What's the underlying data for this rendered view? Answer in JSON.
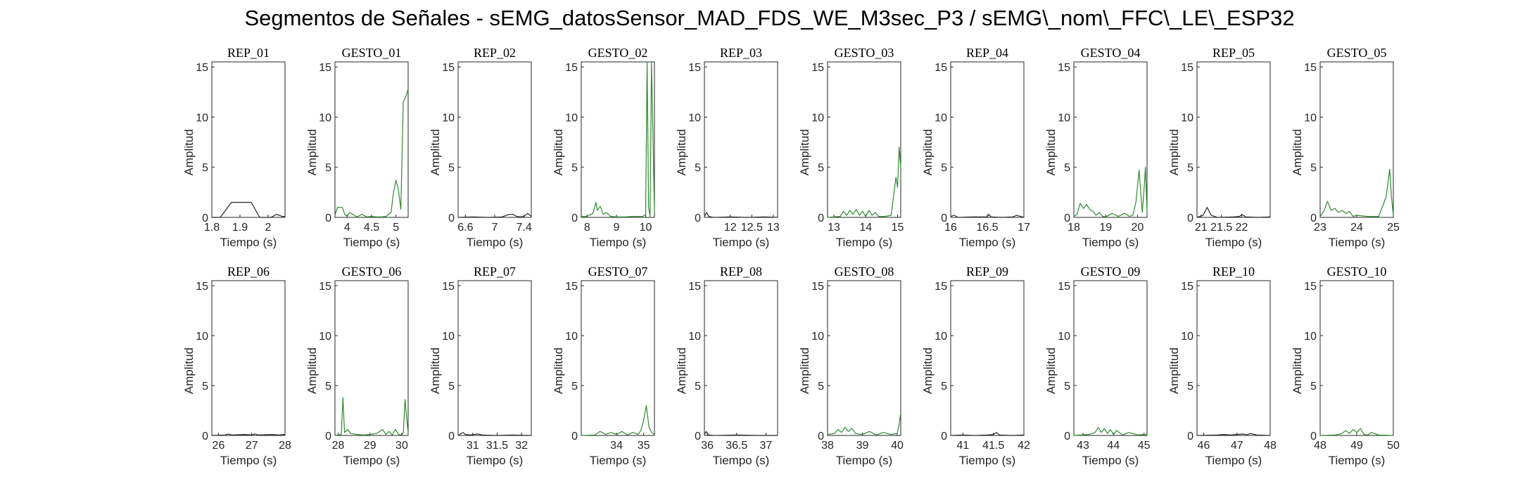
{
  "figure_title": "Segmentos de Señales - sEMG_datosSensor_MAD_FDS_WE_M3sec_P3 / sEMG\\_nom\\_FFC\\_LE\\_ESP32",
  "colors": {
    "rep": "#262626",
    "gesto": "#2e8b2e",
    "axis": "#262626"
  },
  "chart_data": [
    {
      "type": "line",
      "title": "REP_01",
      "xlabel": "Tiempo (s)",
      "ylabel": "Amplitud",
      "xlim": [
        1.8,
        2.06
      ],
      "ylim": [
        0,
        15.5
      ],
      "xticks": [
        1.8,
        1.9,
        2
      ],
      "xtick_labels": [
        "1.8",
        "1.9",
        "2"
      ],
      "yticks": [
        0,
        5,
        10,
        15
      ],
      "color": "rep",
      "x": [
        1.8,
        1.83,
        1.87,
        1.9,
        1.94,
        1.97,
        2.01,
        2.03,
        2.05,
        2.06
      ],
      "y": [
        0,
        0,
        1.5,
        1.5,
        1.5,
        0,
        0,
        0.3,
        0.1,
        0.1
      ]
    },
    {
      "type": "line",
      "title": "GESTO_01",
      "xlabel": "Tiempo (s)",
      "ylabel": "Amplitud",
      "xlim": [
        3.75,
        5.25
      ],
      "ylim": [
        0,
        15.5
      ],
      "xticks": [
        4,
        4.5,
        5
      ],
      "xtick_labels": [
        "4",
        "4.5",
        "5"
      ],
      "yticks": [
        0,
        5,
        10,
        15
      ],
      "color": "gesto",
      "x": [
        3.75,
        3.8,
        3.9,
        3.95,
        4.0,
        4.05,
        4.15,
        4.2,
        4.3,
        4.4,
        4.5,
        4.6,
        4.7,
        4.8,
        4.9,
        4.95,
        5.0,
        5.05,
        5.1,
        5.15,
        5.2,
        5.25
      ],
      "y": [
        0.2,
        1.0,
        1.0,
        0.3,
        0.1,
        0.5,
        0.2,
        0.05,
        0.3,
        0.05,
        0.1,
        0.05,
        0.05,
        0.1,
        0.5,
        2.5,
        3.7,
        2.8,
        0.8,
        11.5,
        12.0,
        12.8
      ]
    },
    {
      "type": "line",
      "title": "REP_02",
      "xlabel": "Tiempo (s)",
      "ylabel": "Amplitud",
      "xlim": [
        6.5,
        7.5
      ],
      "ylim": [
        0,
        15.5
      ],
      "xticks": [
        6.6,
        7,
        7.4
      ],
      "xtick_labels": [
        "6.6",
        "7",
        "7.4"
      ],
      "yticks": [
        0,
        5,
        10,
        15
      ],
      "color": "rep",
      "x": [
        6.5,
        6.7,
        6.9,
        7.1,
        7.2,
        7.25,
        7.3,
        7.35,
        7.4,
        7.45,
        7.5
      ],
      "y": [
        0,
        0.05,
        0,
        0.05,
        0.3,
        0.3,
        0.1,
        0.05,
        0.1,
        0.4,
        0.1
      ]
    },
    {
      "type": "line",
      "title": "GESTO_02",
      "xlabel": "Tiempo (s)",
      "ylabel": "Amplitud",
      "xlim": [
        7.8,
        10.3
      ],
      "ylim": [
        0,
        15.5
      ],
      "xticks": [
        8,
        9,
        10
      ],
      "xtick_labels": [
        "8",
        "9",
        "10"
      ],
      "yticks": [
        0,
        5,
        10,
        15
      ],
      "color": "gesto",
      "x": [
        7.8,
        8.0,
        8.2,
        8.3,
        8.35,
        8.45,
        8.55,
        8.65,
        8.8,
        9.0,
        9.3,
        9.6,
        9.9,
        10.0,
        10.05,
        10.1,
        10.15,
        10.2,
        10.3
      ],
      "y": [
        0.1,
        0.1,
        0.4,
        1.5,
        0.7,
        1.1,
        0.3,
        0.5,
        0.1,
        0.05,
        0.05,
        0.1,
        0.1,
        0.3,
        15.5,
        1.0,
        0.1,
        15.5,
        0.5
      ]
    },
    {
      "type": "line",
      "title": "REP_03",
      "xlabel": "Tiempo (s)",
      "ylabel": "Amplitud",
      "xlim": [
        11.4,
        13.1
      ],
      "ylim": [
        0,
        15.5
      ],
      "xticks": [
        12,
        12.5,
        13
      ],
      "xtick_labels": [
        "12",
        "12.5",
        "13"
      ],
      "yticks": [
        0,
        5,
        10,
        15
      ],
      "color": "rep",
      "x": [
        11.4,
        11.45,
        11.5,
        11.6,
        12.0,
        12.4,
        12.8,
        13.1
      ],
      "y": [
        0.1,
        0.5,
        0.1,
        0,
        0.05,
        0,
        0.05,
        0
      ]
    },
    {
      "type": "line",
      "title": "GESTO_03",
      "xlabel": "Tiempo (s)",
      "ylabel": "Amplitud",
      "xlim": [
        12.8,
        15.1
      ],
      "ylim": [
        0,
        15.5
      ],
      "xticks": [
        13,
        14,
        15
      ],
      "xtick_labels": [
        "13",
        "14",
        "15"
      ],
      "yticks": [
        0,
        5,
        10,
        15
      ],
      "color": "gesto",
      "x": [
        12.8,
        13.2,
        13.3,
        13.4,
        13.5,
        13.6,
        13.7,
        13.8,
        13.9,
        14.0,
        14.1,
        14.2,
        14.3,
        14.4,
        14.6,
        14.8,
        14.95,
        15.0,
        15.05,
        15.1
      ],
      "y": [
        0,
        0.1,
        0.6,
        0.2,
        0.7,
        0.3,
        0.8,
        0.2,
        0.6,
        0.1,
        0.7,
        0.2,
        0.5,
        0.1,
        0.1,
        0.2,
        4.0,
        3.0,
        7.0,
        5.0
      ]
    },
    {
      "type": "line",
      "title": "REP_04",
      "xlabel": "Tiempo (s)",
      "ylabel": "Amplitud",
      "xlim": [
        16,
        17
      ],
      "ylim": [
        0,
        15.5
      ],
      "xticks": [
        16,
        16.5,
        17
      ],
      "xtick_labels": [
        "16",
        "16.5",
        "17"
      ],
      "yticks": [
        0,
        5,
        10,
        15
      ],
      "color": "rep",
      "x": [
        16.0,
        16.05,
        16.1,
        16.3,
        16.5,
        16.52,
        16.55,
        16.7,
        16.85,
        16.9,
        17.0
      ],
      "y": [
        0.1,
        0.2,
        0,
        0.05,
        0.05,
        0.3,
        0.05,
        0,
        0.05,
        0.2,
        0
      ]
    },
    {
      "type": "line",
      "title": "GESTO_04",
      "xlabel": "Tiempo (s)",
      "ylabel": "Amplitud",
      "xlim": [
        18,
        20.3
      ],
      "ylim": [
        0,
        15.5
      ],
      "xticks": [
        18,
        19,
        20
      ],
      "xtick_labels": [
        "18",
        "19",
        "20"
      ],
      "yticks": [
        0,
        5,
        10,
        15
      ],
      "color": "gesto",
      "x": [
        18.0,
        18.1,
        18.2,
        18.3,
        18.4,
        18.5,
        18.6,
        18.7,
        18.8,
        18.9,
        19.0,
        19.2,
        19.4,
        19.6,
        19.75,
        19.85,
        19.95,
        20.05,
        20.15,
        20.2,
        20.25,
        20.3
      ],
      "y": [
        0.1,
        0.3,
        1.4,
        0.9,
        1.3,
        0.8,
        0.6,
        0.2,
        0.5,
        0.1,
        0.05,
        0.4,
        0.1,
        0.4,
        0.1,
        0.2,
        1.5,
        4.7,
        0.5,
        2.5,
        5.0,
        0.5
      ]
    },
    {
      "type": "line",
      "title": "REP_05",
      "xlabel": "Tiempo (s)",
      "ylabel": "Amplitud",
      "xlim": [
        20.9,
        22.7
      ],
      "ylim": [
        0,
        15.5
      ],
      "xticks": [
        21,
        21.5,
        22
      ],
      "xtick_labels": [
        "21",
        "21.5",
        "22"
      ],
      "yticks": [
        0,
        5,
        10,
        15
      ],
      "color": "rep",
      "x": [
        20.9,
        21.05,
        21.15,
        21.25,
        21.4,
        21.8,
        21.95,
        22.0,
        22.1,
        22.4,
        22.7
      ],
      "y": [
        0,
        0.2,
        1.0,
        0.2,
        0,
        0.05,
        0.1,
        0.3,
        0.05,
        0,
        0.05
      ]
    },
    {
      "type": "line",
      "title": "GESTO_05",
      "xlabel": "Tiempo (s)",
      "ylabel": "Amplitud",
      "xlim": [
        23,
        25
      ],
      "ylim": [
        0,
        15.5
      ],
      "xticks": [
        23,
        24,
        25
      ],
      "xtick_labels": [
        "23",
        "24",
        "25"
      ],
      "yticks": [
        0,
        5,
        10,
        15
      ],
      "color": "gesto",
      "x": [
        23.0,
        23.1,
        23.2,
        23.3,
        23.4,
        23.5,
        23.6,
        23.7,
        23.8,
        23.9,
        24.0,
        24.3,
        24.6,
        24.8,
        24.9,
        24.95,
        25.0
      ],
      "y": [
        0.1,
        0.6,
        1.6,
        0.7,
        0.9,
        0.5,
        0.7,
        0.4,
        0.6,
        0.1,
        0.2,
        0.1,
        0.1,
        2.0,
        4.8,
        2.0,
        0.2
      ]
    },
    {
      "type": "line",
      "title": "REP_06",
      "xlabel": "Tiempo (s)",
      "ylabel": "Amplitud",
      "xlim": [
        25.8,
        28
      ],
      "ylim": [
        0,
        15.5
      ],
      "xticks": [
        26,
        27,
        28
      ],
      "xtick_labels": [
        "26",
        "27",
        "28"
      ],
      "yticks": [
        0,
        5,
        10,
        15
      ],
      "color": "rep",
      "x": [
        25.8,
        26.2,
        26.3,
        26.4,
        26.8,
        27.0,
        27.1,
        27.2,
        27.6,
        27.8,
        28.0
      ],
      "y": [
        0,
        0.05,
        0.15,
        0.05,
        0.1,
        0.05,
        0.15,
        0.05,
        0.1,
        0.05,
        0.1
      ]
    },
    {
      "type": "line",
      "title": "GESTO_06",
      "xlabel": "Tiempo (s)",
      "ylabel": "Amplitud",
      "xlim": [
        27.9,
        30.2
      ],
      "ylim": [
        0,
        15.5
      ],
      "xticks": [
        28,
        29,
        30
      ],
      "xtick_labels": [
        "28",
        "29",
        "30"
      ],
      "yticks": [
        0,
        5,
        10,
        15
      ],
      "color": "gesto",
      "x": [
        27.9,
        28.0,
        28.1,
        28.15,
        28.2,
        28.3,
        28.4,
        28.6,
        28.8,
        29.0,
        29.2,
        29.4,
        29.5,
        29.6,
        29.7,
        29.8,
        29.9,
        30.0,
        30.05,
        30.1,
        30.2
      ],
      "y": [
        0,
        0.05,
        0.1,
        3.8,
        0.3,
        0.6,
        0.2,
        0.1,
        0.05,
        0.1,
        0.2,
        0.6,
        0.1,
        0.4,
        0.05,
        0.6,
        0.1,
        0.05,
        0.3,
        3.6,
        0.2
      ]
    },
    {
      "type": "line",
      "title": "REP_07",
      "xlabel": "Tiempo (s)",
      "ylabel": "Amplitud",
      "xlim": [
        30.7,
        32.2
      ],
      "ylim": [
        0,
        15.5
      ],
      "xticks": [
        31,
        31.5,
        32
      ],
      "xtick_labels": [
        "31",
        "31.5",
        "32"
      ],
      "yticks": [
        0,
        5,
        10,
        15
      ],
      "color": "rep",
      "x": [
        30.7,
        30.8,
        30.85,
        30.95,
        31.1,
        31.2,
        31.5,
        31.8,
        32.2
      ],
      "y": [
        0,
        0.3,
        0.1,
        0.05,
        0.15,
        0.05,
        0,
        0.05,
        0
      ]
    },
    {
      "type": "line",
      "title": "GESTO_07",
      "xlabel": "Tiempo (s)",
      "ylabel": "Amplitud",
      "xlim": [
        32.7,
        35.4
      ],
      "ylim": [
        0,
        15.5
      ],
      "xticks": [
        34,
        35
      ],
      "xtick_labels": [
        "34",
        "35"
      ],
      "yticks": [
        0,
        5,
        10,
        15
      ],
      "color": "gesto",
      "x": [
        32.7,
        33.2,
        33.4,
        33.6,
        33.8,
        34.0,
        34.2,
        34.4,
        34.6,
        34.8,
        34.9,
        35.0,
        35.1,
        35.2,
        35.3,
        35.4
      ],
      "y": [
        0,
        0.05,
        0.4,
        0.1,
        0.3,
        0.1,
        0.4,
        0.05,
        0.3,
        0.1,
        0.5,
        1.5,
        3.0,
        0.8,
        0.3,
        0.1
      ]
    },
    {
      "type": "line",
      "title": "REP_08",
      "xlabel": "Tiempo (s)",
      "ylabel": "Amplitud",
      "xlim": [
        35.95,
        37.2
      ],
      "ylim": [
        0,
        15.5
      ],
      "xticks": [
        36,
        36.5,
        37
      ],
      "xtick_labels": [
        "36",
        "36.5",
        "37"
      ],
      "yticks": [
        0,
        5,
        10,
        15
      ],
      "color": "rep",
      "x": [
        35.95,
        35.98,
        36.02,
        36.1,
        36.5,
        36.9,
        37.2
      ],
      "y": [
        0.1,
        0.4,
        0.05,
        0,
        0.05,
        0,
        0
      ]
    },
    {
      "type": "line",
      "title": "GESTO_08",
      "xlabel": "Tiempo (s)",
      "ylabel": "Amplitud",
      "xlim": [
        38,
        40.1
      ],
      "ylim": [
        0,
        15.5
      ],
      "xticks": [
        38,
        39,
        40
      ],
      "xtick_labels": [
        "38",
        "39",
        "40"
      ],
      "yticks": [
        0,
        5,
        10,
        15
      ],
      "color": "gesto",
      "x": [
        38.0,
        38.2,
        38.3,
        38.4,
        38.5,
        38.6,
        38.7,
        38.8,
        39.0,
        39.2,
        39.4,
        39.6,
        39.8,
        40.0,
        40.05,
        40.1
      ],
      "y": [
        0.1,
        0.2,
        0.6,
        0.3,
        0.8,
        0.4,
        0.7,
        0.2,
        0.1,
        0.4,
        0.05,
        0.3,
        0.1,
        0.2,
        1.0,
        2.3
      ]
    },
    {
      "type": "line",
      "title": "REP_09",
      "xlabel": "Tiempo (s)",
      "ylabel": "Amplitud",
      "xlim": [
        40.8,
        42
      ],
      "ylim": [
        0,
        15.5
      ],
      "xticks": [
        41,
        41.5,
        42
      ],
      "xtick_labels": [
        "41",
        "41.5",
        "42"
      ],
      "yticks": [
        0,
        5,
        10,
        15
      ],
      "color": "rep",
      "x": [
        40.8,
        41.0,
        41.2,
        41.4,
        41.5,
        41.55,
        41.6,
        41.8,
        42.0
      ],
      "y": [
        0,
        0.05,
        0,
        0.05,
        0.1,
        0.3,
        0.05,
        0,
        0.05
      ]
    },
    {
      "type": "line",
      "title": "GESTO_09",
      "xlabel": "Tiempo (s)",
      "ylabel": "Amplitud",
      "xlim": [
        42.7,
        45.1
      ],
      "ylim": [
        0,
        15.5
      ],
      "xticks": [
        43,
        44,
        45
      ],
      "xtick_labels": [
        "43",
        "44",
        "45"
      ],
      "yticks": [
        0,
        5,
        10,
        15
      ],
      "color": "gesto",
      "x": [
        42.7,
        43.2,
        43.4,
        43.5,
        43.6,
        43.7,
        43.8,
        43.9,
        44.0,
        44.1,
        44.3,
        44.5,
        44.8,
        45.0,
        45.1
      ],
      "y": [
        0,
        0.1,
        0.3,
        0.8,
        0.3,
        0.7,
        0.2,
        0.6,
        0.1,
        0.5,
        0.05,
        0.3,
        0.05,
        0.1,
        0.05
      ]
    },
    {
      "type": "line",
      "title": "REP_10",
      "xlabel": "Tiempo (s)",
      "ylabel": "Amplitud",
      "xlim": [
        45.8,
        48
      ],
      "ylim": [
        0,
        15.5
      ],
      "xticks": [
        46,
        47,
        48
      ],
      "xtick_labels": [
        "46",
        "47",
        "48"
      ],
      "yticks": [
        0,
        5,
        10,
        15
      ],
      "color": "rep",
      "x": [
        45.8,
        46.4,
        46.6,
        46.8,
        47.0,
        47.2,
        47.3,
        47.4,
        47.6,
        48.0
      ],
      "y": [
        0,
        0.05,
        0.1,
        0.05,
        0.1,
        0.15,
        0.05,
        0.2,
        0.05,
        0
      ]
    },
    {
      "type": "line",
      "title": "GESTO_10",
      "xlabel": "Tiempo (s)",
      "ylabel": "Amplitud",
      "xlim": [
        48,
        50
      ],
      "ylim": [
        0,
        15.5
      ],
      "xticks": [
        48,
        49,
        50
      ],
      "xtick_labels": [
        "48",
        "49",
        "50"
      ],
      "yticks": [
        0,
        5,
        10,
        15
      ],
      "color": "gesto",
      "x": [
        48.0,
        48.4,
        48.6,
        48.7,
        48.8,
        48.9,
        49.0,
        49.1,
        49.2,
        49.3,
        49.4,
        49.6,
        50.0
      ],
      "y": [
        0,
        0.05,
        0.2,
        0.5,
        0.2,
        0.6,
        0.3,
        0.7,
        0.1,
        0.05,
        0.3,
        0.05,
        0
      ]
    }
  ]
}
